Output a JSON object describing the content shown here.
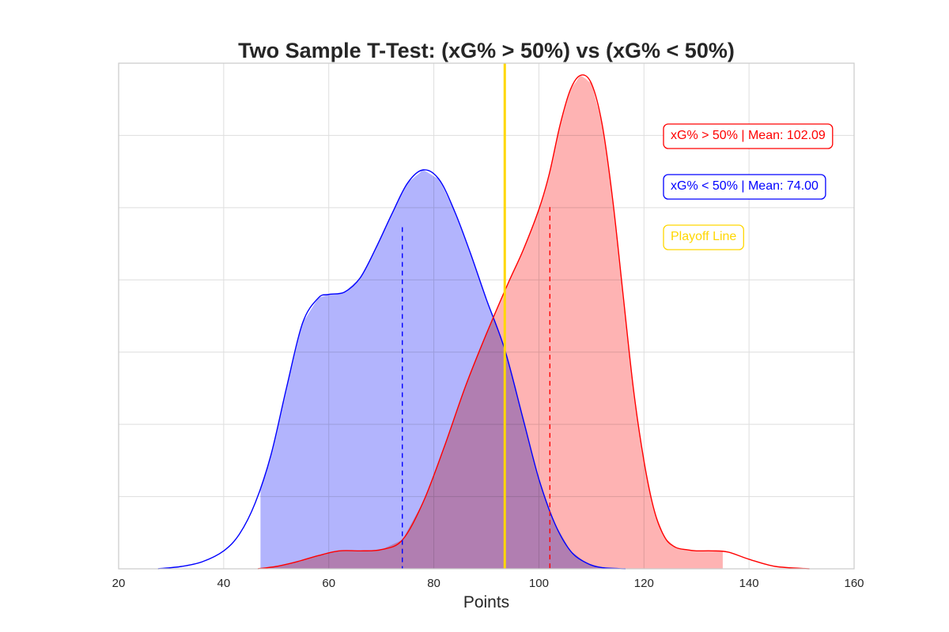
{
  "chart_data": {
    "type": "area",
    "title": "Two Sample T-Test: (xG% > 50%) vs (xG% < 50%)",
    "xlabel": "Points",
    "ylabel": "",
    "xlim": [
      20,
      160
    ],
    "ylim": [
      0,
      0.0422
    ],
    "x_ticks": [
      20,
      40,
      60,
      80,
      100,
      120,
      140,
      160
    ],
    "y_tick_labels_shown": false,
    "grid": true,
    "series": [
      {
        "color": "#0000ff",
        "fill": "#b0b2fd",
        "fill_range": [
          47,
          117
        ],
        "mean": 74.0,
        "x": [
          27.5,
          32,
          36,
          40,
          43,
          46,
          49,
          52,
          55,
          58,
          60,
          63,
          66,
          69,
          72,
          75,
          78,
          81,
          84,
          87,
          90,
          93.5,
          97,
          100,
          103,
          106,
          109,
          112,
          116.5
        ],
        "y": [
          0.0,
          0.0002,
          0.0006,
          0.0015,
          0.0029,
          0.0055,
          0.0095,
          0.0152,
          0.0205,
          0.0226,
          0.0229,
          0.0231,
          0.0243,
          0.0268,
          0.0296,
          0.0322,
          0.0333,
          0.0325,
          0.0298,
          0.0263,
          0.0225,
          0.0183,
          0.0125,
          0.0075,
          0.0038,
          0.0015,
          0.0005,
          0.0001,
          0.0
        ]
      },
      {
        "color": "#ff0000",
        "fill": "#feb1b1",
        "fill_range": [
          47,
          135
        ],
        "mean": 102.09,
        "x": [
          46.5,
          50,
          54,
          58,
          62,
          66,
          70,
          74,
          78,
          82,
          86,
          90,
          94,
          97,
          100,
          102,
          104,
          106,
          108,
          110,
          112,
          114,
          116,
          118,
          120,
          122,
          124,
          126,
          128,
          130,
          133,
          136,
          140,
          145,
          151.5
        ],
        "y": [
          0.0,
          0.0002,
          0.0006,
          0.0011,
          0.0015,
          0.0015,
          0.0016,
          0.0024,
          0.0056,
          0.0102,
          0.0152,
          0.0196,
          0.0237,
          0.0266,
          0.03,
          0.033,
          0.037,
          0.04,
          0.0412,
          0.0405,
          0.0372,
          0.031,
          0.023,
          0.015,
          0.009,
          0.0048,
          0.0026,
          0.0018,
          0.0016,
          0.0015,
          0.0015,
          0.0014,
          0.0008,
          0.0002,
          0.0
        ]
      }
    ],
    "playoff_line": {
      "x": 93.5,
      "color": "#ffd700"
    },
    "annotations": [
      {
        "text": "xG% > 50% | Mean: 102.09",
        "color": "#ff0000"
      },
      {
        "text": "xG% < 50% | Mean: 74.00",
        "color": "#0000ff"
      },
      {
        "text": "Playoff Line",
        "color": "#ffd700"
      }
    ]
  }
}
